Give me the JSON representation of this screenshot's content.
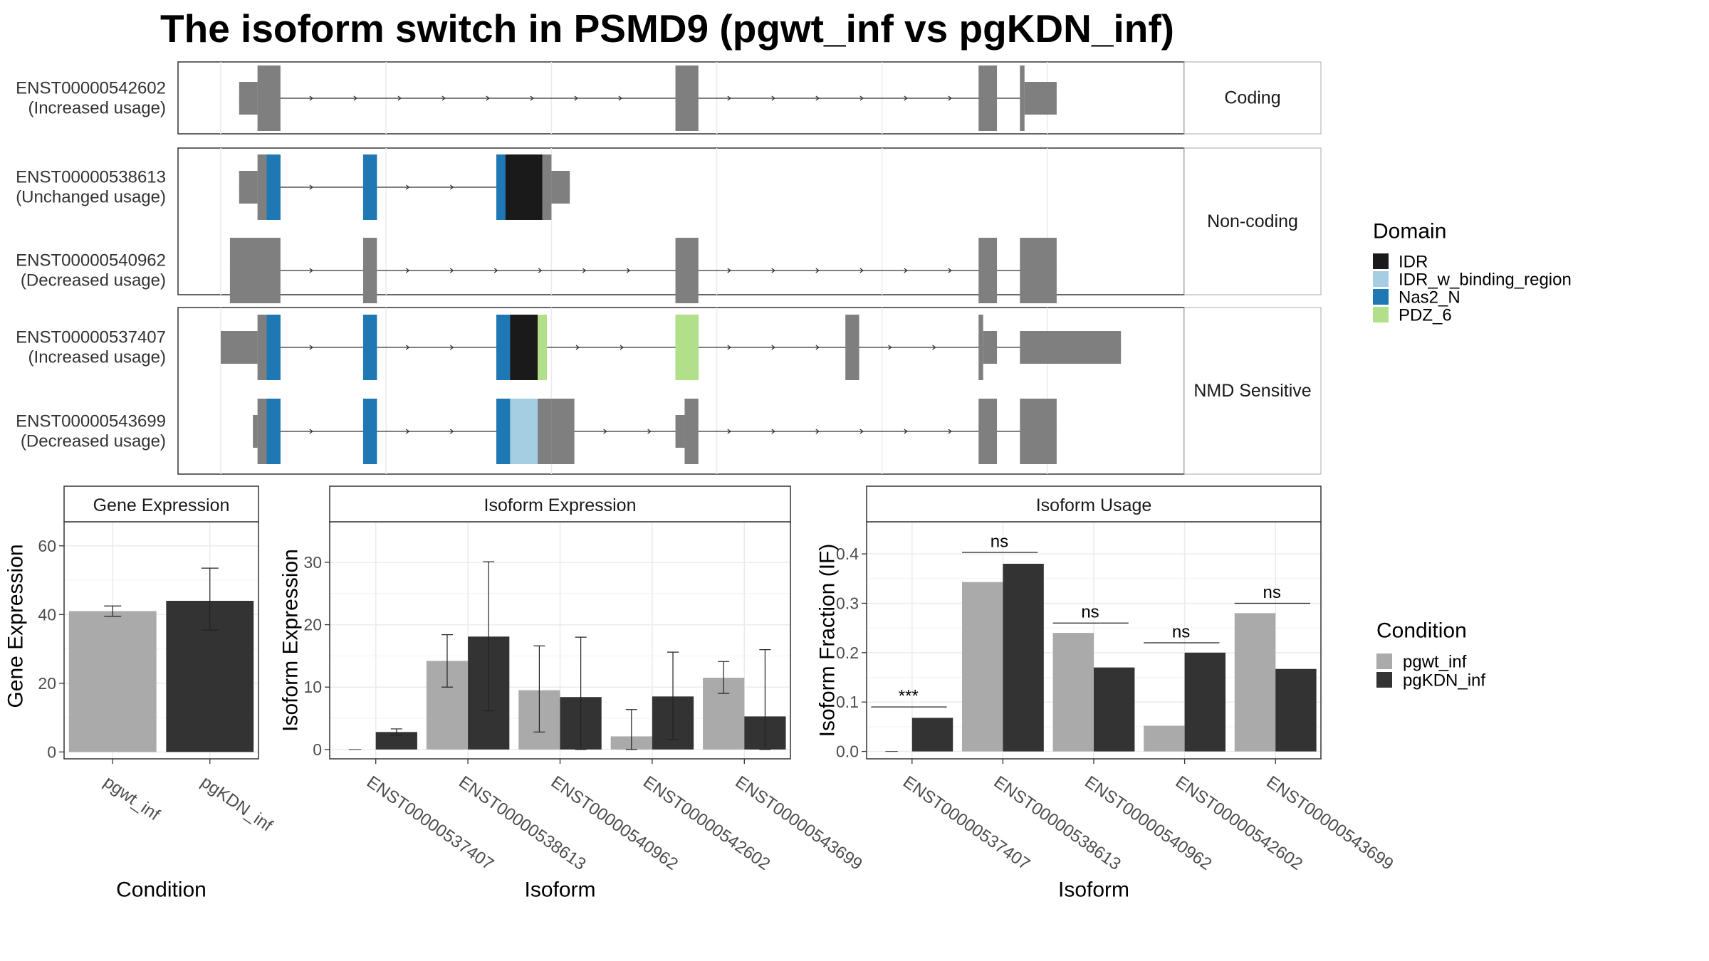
{
  "title": "The isoform switch in PSMD9 (pgwt_inf vs pgKDN_inf)",
  "colors": {
    "exon": "#7f7f7f",
    "IDR": "#1a1a1a",
    "IDR_w_binding_region": "#a6cee3",
    "Nas2_N": "#1f78b4",
    "PDZ_6": "#b2df8a",
    "pgwt_inf": "#aaaaaa",
    "pgKDN_inf": "#333333",
    "strip_bg": "#ffffff",
    "grid": "#ebebeb"
  },
  "transcript_plot": {
    "genome_range": [
      0,
      10
    ],
    "groups": [
      {
        "label": "Coding",
        "transcripts": [
          {
            "id": "ENST00000542602",
            "usage": "(Increased usage)",
            "exons": [
              [
                0.2,
                0.4,
                "utr"
              ],
              [
                0.4,
                0.65,
                "cds"
              ],
              [
                4.95,
                5.2,
                "cds"
              ],
              [
                8.25,
                8.45,
                "cds"
              ],
              [
                8.7,
                8.75,
                "cds"
              ],
              [
                8.75,
                9.1,
                "utr"
              ]
            ],
            "domains": []
          }
        ]
      },
      {
        "label": "Non-coding",
        "transcripts": [
          {
            "id": "ENST00000538613",
            "usage": "(Unchanged usage)",
            "exons": [
              [
                0.2,
                0.4,
                "utr"
              ],
              [
                0.4,
                0.65,
                "cds"
              ],
              [
                1.55,
                1.7,
                "cds"
              ],
              [
                3.0,
                3.6,
                "cds"
              ],
              [
                3.6,
                3.8,
                "utr"
              ]
            ],
            "domains": [
              [
                0.5,
                0.65,
                "Nas2_N"
              ],
              [
                1.55,
                1.7,
                "Nas2_N"
              ],
              [
                3.0,
                3.1,
                "Nas2_N"
              ],
              [
                3.1,
                3.5,
                "IDR"
              ]
            ]
          },
          {
            "id": "ENST00000540962",
            "usage": "(Decreased usage)",
            "exons": [
              [
                0.1,
                0.65,
                "cds"
              ],
              [
                1.55,
                1.7,
                "cds"
              ],
              [
                4.95,
                5.2,
                "cds"
              ],
              [
                8.25,
                8.45,
                "cds"
              ],
              [
                8.7,
                9.1,
                "cds"
              ]
            ],
            "domains": []
          }
        ]
      },
      {
        "label": "NMD Sensitive",
        "transcripts": [
          {
            "id": "ENST00000537407",
            "usage": "(Increased usage)",
            "exons": [
              [
                0.0,
                0.4,
                "utr"
              ],
              [
                0.4,
                0.65,
                "cds"
              ],
              [
                1.55,
                1.7,
                "cds"
              ],
              [
                3.0,
                3.5,
                "cds"
              ],
              [
                3.5,
                3.55,
                "cds"
              ],
              [
                4.95,
                5.2,
                "cds"
              ],
              [
                6.8,
                6.95,
                "cds"
              ],
              [
                8.25,
                8.3,
                "cds"
              ],
              [
                8.3,
                8.45,
                "utr"
              ],
              [
                8.7,
                9.8,
                "utr"
              ]
            ],
            "domains": [
              [
                0.5,
                0.65,
                "Nas2_N"
              ],
              [
                1.55,
                1.7,
                "Nas2_N"
              ],
              [
                3.0,
                3.15,
                "Nas2_N"
              ],
              [
                3.15,
                3.45,
                "IDR"
              ],
              [
                3.45,
                3.55,
                "PDZ_6"
              ],
              [
                4.95,
                5.2,
                "PDZ_6"
              ]
            ]
          },
          {
            "id": "ENST00000543699",
            "usage": "(Decreased usage)",
            "exons": [
              [
                0.35,
                0.4,
                "utr"
              ],
              [
                0.4,
                0.65,
                "cds"
              ],
              [
                1.55,
                1.7,
                "cds"
              ],
              [
                3.0,
                3.6,
                "cds"
              ],
              [
                3.6,
                3.85,
                "cds"
              ],
              [
                4.95,
                5.05,
                "utr"
              ],
              [
                5.05,
                5.2,
                "cds"
              ],
              [
                8.25,
                8.45,
                "cds"
              ],
              [
                8.7,
                9.1,
                "cds"
              ]
            ],
            "domains": [
              [
                0.5,
                0.65,
                "Nas2_N"
              ],
              [
                1.55,
                1.7,
                "Nas2_N"
              ],
              [
                3.0,
                3.15,
                "Nas2_N"
              ],
              [
                3.15,
                3.45,
                "IDR_w_binding_region"
              ]
            ]
          }
        ]
      }
    ],
    "gridlines": [
      0.0,
      1.8,
      3.6,
      5.4,
      7.2,
      9.0
    ]
  },
  "domain_legend": {
    "title": "Domain",
    "items": [
      "IDR",
      "IDR_w_binding_region",
      "Nas2_N",
      "PDZ_6"
    ]
  },
  "condition_legend": {
    "title": "Condition",
    "items": [
      "pgwt_inf",
      "pgKDN_inf"
    ]
  },
  "chart_data": [
    {
      "type": "bar",
      "title": "Gene Expression",
      "xlabel": "Condition",
      "ylabel": "Gene Expression",
      "categories": [
        "pgwt_inf",
        "pgKDN_inf"
      ],
      "values": [
        41,
        44
      ],
      "error": [
        [
          39.5,
          42.5
        ],
        [
          35.5,
          53.5
        ]
      ],
      "ylim": [
        -2,
        67
      ],
      "yticks": [
        0,
        20,
        40,
        60
      ]
    },
    {
      "type": "bar",
      "title": "Isoform Expression",
      "xlabel": "Isoform",
      "ylabel": "Isoform Expression",
      "categories": [
        "ENST00000537407",
        "ENST00000538613",
        "ENST00000540962",
        "ENST00000542602",
        "ENST00000543699"
      ],
      "series": [
        {
          "name": "pgwt_inf",
          "values": [
            0,
            14.2,
            9.5,
            2.1,
            11.5
          ],
          "error": [
            [
              0,
              0
            ],
            [
              10,
              18.4
            ],
            [
              2.8,
              16.6
            ],
            [
              0,
              6.4
            ],
            [
              9,
              14.1
            ]
          ]
        },
        {
          "name": "pgKDN_inf",
          "values": [
            2.8,
            18.1,
            8.4,
            8.5,
            5.3
          ],
          "error": [
            [
              2.3,
              3.3
            ],
            [
              6.2,
              30.1
            ],
            [
              0,
              18
            ],
            [
              1.6,
              15.6
            ],
            [
              0,
              16
            ]
          ]
        }
      ],
      "ylim": [
        -1.5,
        36.5
      ],
      "yticks": [
        0,
        10,
        20,
        30
      ]
    },
    {
      "type": "bar",
      "title": "Isoform Usage",
      "xlabel": "Isoform",
      "ylabel": "Isoform Fraction (IF)",
      "categories": [
        "ENST00000537407",
        "ENST00000538613",
        "ENST00000540962",
        "ENST00000542602",
        "ENST00000543699"
      ],
      "series": [
        {
          "name": "pgwt_inf",
          "values": [
            0,
            0.343,
            0.24,
            0.052,
            0.28
          ]
        },
        {
          "name": "pgKDN_inf",
          "values": [
            0.068,
            0.38,
            0.17,
            0.2,
            0.167
          ]
        }
      ],
      "significance": [
        "***",
        "ns",
        "ns",
        "ns",
        "ns"
      ],
      "sig_y": [
        0.09,
        0.403,
        0.26,
        0.22,
        0.3
      ],
      "ylim": [
        -0.015,
        0.465
      ],
      "yticks": [
        0.0,
        0.1,
        0.2,
        0.3,
        0.4
      ]
    }
  ]
}
